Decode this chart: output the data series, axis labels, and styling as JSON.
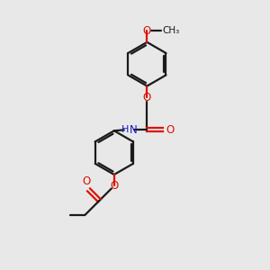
{
  "background_color": "#e8e8e8",
  "bond_color": "#1a1a1a",
  "oxygen_color": "#dd1100",
  "nitrogen_color": "#1a1acc",
  "line_width": 1.6,
  "figsize": [
    3.0,
    3.0
  ],
  "dpi": 100,
  "xlim": [
    0,
    10
  ],
  "ylim": [
    0,
    10
  ]
}
